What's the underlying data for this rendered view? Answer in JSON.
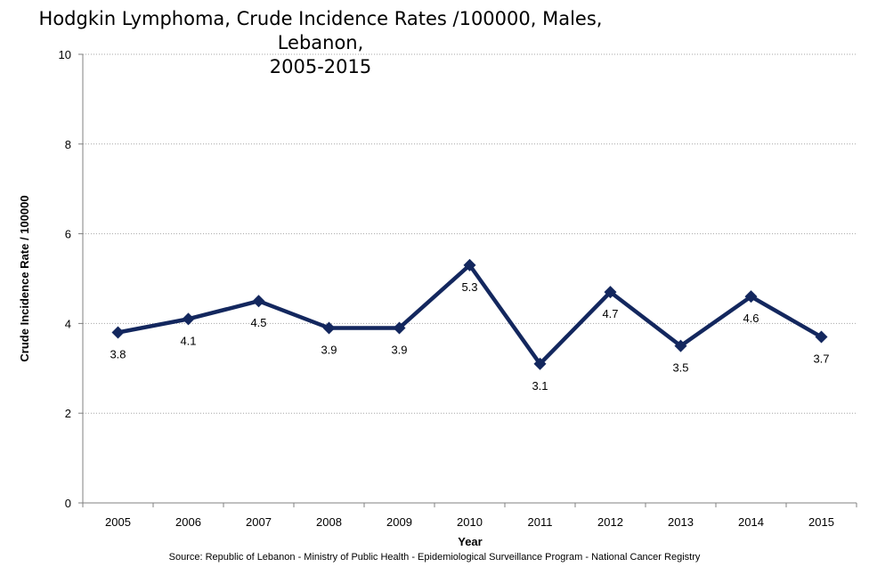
{
  "chart_data": {
    "type": "line",
    "title_line1": "Hodgkin Lymphoma, Crude Incidence Rates /100000, Males, Lebanon,",
    "title_line2": "2005-2015",
    "xlabel": "Year",
    "ylabel": "Crude Incidence Rate / 100000",
    "ylim": [
      0,
      10
    ],
    "yticks": [
      0,
      2,
      4,
      6,
      8,
      10
    ],
    "grid": "horizontal-dotted",
    "categories": [
      "2005",
      "2006",
      "2007",
      "2008",
      "2009",
      "2010",
      "2011",
      "2012",
      "2013",
      "2014",
      "2015"
    ],
    "values": [
      3.8,
      4.1,
      4.5,
      3.9,
      3.9,
      5.3,
      3.1,
      4.7,
      3.5,
      4.6,
      3.7
    ],
    "line_color": "#13275e",
    "source": "Source:  Republic of Lebanon - Ministry of Public Health - Epidemiological Surveillance Program - National Cancer Registry"
  }
}
